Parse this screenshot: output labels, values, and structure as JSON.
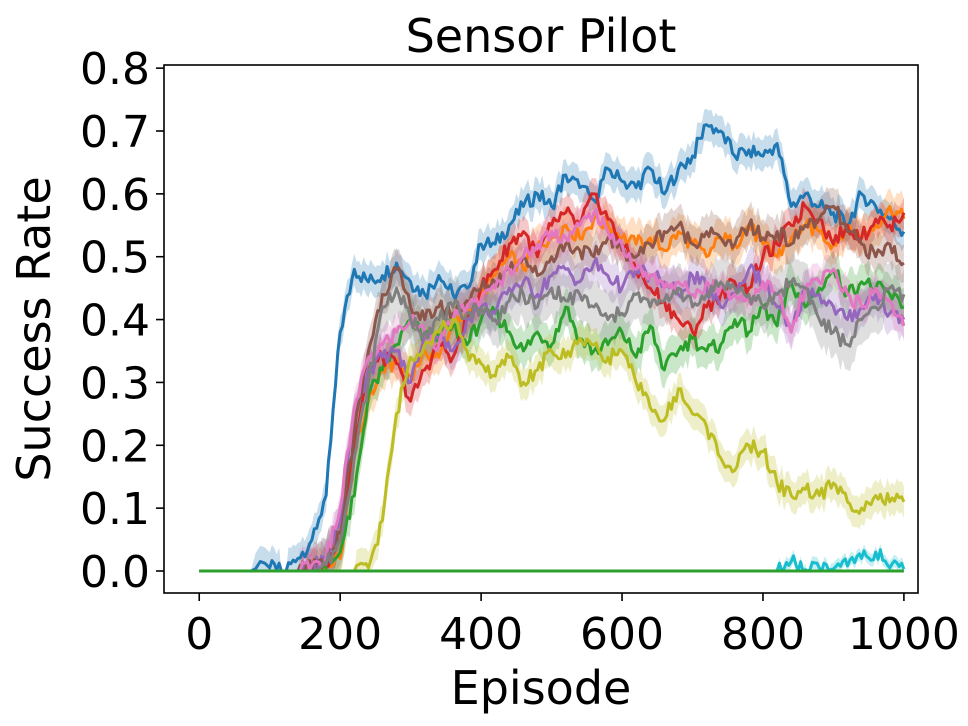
{
  "chart_data": {
    "type": "line",
    "title": "Sensor Pilot",
    "xlabel": "Episode",
    "ylabel": "Success Rate",
    "xlim": [
      -50,
      1020
    ],
    "ylim": [
      -0.035,
      0.805
    ],
    "xticks": [
      "0",
      "200",
      "400",
      "600",
      "800",
      "1000"
    ],
    "xtick_values": [
      0,
      200,
      400,
      600,
      800,
      1000
    ],
    "yticks": [
      "0.0",
      "0.1",
      "0.2",
      "0.3",
      "0.4",
      "0.5",
      "0.6",
      "0.7",
      "0.8"
    ],
    "ytick_values": [
      0.0,
      0.1,
      0.2,
      0.3,
      0.4,
      0.5,
      0.6,
      0.7,
      0.8
    ],
    "grid": false,
    "legend": "none",
    "shaded_band": true,
    "x": [
      0,
      60,
      100,
      120,
      140,
      160,
      180,
      200,
      220,
      240,
      260,
      280,
      300,
      320,
      340,
      360,
      380,
      400,
      420,
      440,
      460,
      480,
      500,
      520,
      540,
      560,
      580,
      600,
      620,
      640,
      660,
      680,
      700,
      720,
      740,
      760,
      780,
      800,
      820,
      840,
      860,
      880,
      900,
      920,
      940,
      960,
      980,
      1000
    ],
    "series": [
      {
        "color": "#1f77b4",
        "values": [
          0,
          0,
          0.005,
          0,
          0.02,
          0.05,
          0.12,
          0.38,
          0.48,
          0.46,
          0.47,
          0.49,
          0.46,
          0.44,
          0.47,
          0.44,
          0.45,
          0.52,
          0.52,
          0.55,
          0.58,
          0.6,
          0.58,
          0.63,
          0.61,
          0.59,
          0.64,
          0.62,
          0.61,
          0.64,
          0.6,
          0.64,
          0.66,
          0.71,
          0.7,
          0.66,
          0.67,
          0.66,
          0.68,
          0.58,
          0.6,
          0.58,
          0.57,
          0.55,
          0.6,
          0.58,
          0.56,
          0.54
        ],
        "band": 0.025
      },
      {
        "color": "#ff7f0e",
        "values": [
          0,
          0,
          0,
          0,
          0,
          0.005,
          0.01,
          0.02,
          0.18,
          0.27,
          0.32,
          0.33,
          0.31,
          0.35,
          0.34,
          0.39,
          0.4,
          0.44,
          0.47,
          0.5,
          0.48,
          0.52,
          0.53,
          0.55,
          0.53,
          0.56,
          0.55,
          0.53,
          0.52,
          0.53,
          0.51,
          0.54,
          0.52,
          0.5,
          0.53,
          0.52,
          0.55,
          0.52,
          0.5,
          0.53,
          0.55,
          0.54,
          0.52,
          0.55,
          0.53,
          0.55,
          0.58,
          0.56
        ],
        "band": 0.03
      },
      {
        "color": "#2ca02c",
        "values": [
          0,
          0,
          0,
          0,
          0,
          0,
          0.005,
          0.03,
          0.12,
          0.28,
          0.32,
          0.36,
          0.4,
          0.37,
          0.38,
          0.39,
          0.36,
          0.4,
          0.41,
          0.38,
          0.35,
          0.38,
          0.36,
          0.42,
          0.37,
          0.35,
          0.36,
          0.38,
          0.34,
          0.39,
          0.32,
          0.35,
          0.37,
          0.35,
          0.36,
          0.4,
          0.38,
          0.42,
          0.39,
          0.46,
          0.42,
          0.45,
          0.48,
          0.44,
          0.46,
          0.45,
          0.44,
          0.42
        ],
        "band": 0.03
      },
      {
        "color": "#d62728",
        "values": [
          0,
          0,
          0,
          0,
          0,
          0.005,
          0.01,
          0.05,
          0.2,
          0.32,
          0.34,
          0.33,
          0.27,
          0.32,
          0.36,
          0.34,
          0.4,
          0.45,
          0.48,
          0.52,
          0.54,
          0.5,
          0.55,
          0.57,
          0.55,
          0.6,
          0.56,
          0.52,
          0.48,
          0.45,
          0.43,
          0.4,
          0.38,
          0.42,
          0.44,
          0.46,
          0.45,
          0.5,
          0.52,
          0.55,
          0.58,
          0.56,
          0.52,
          0.55,
          0.53,
          0.56,
          0.55,
          0.57
        ],
        "band": 0.025
      },
      {
        "color": "#9467bd",
        "values": [
          0,
          0,
          0,
          0,
          0,
          0.005,
          0.02,
          0.08,
          0.25,
          0.32,
          0.34,
          0.35,
          0.3,
          0.38,
          0.37,
          0.35,
          0.4,
          0.42,
          0.41,
          0.45,
          0.46,
          0.44,
          0.47,
          0.48,
          0.46,
          0.49,
          0.47,
          0.45,
          0.48,
          0.47,
          0.46,
          0.44,
          0.47,
          0.45,
          0.42,
          0.44,
          0.48,
          0.46,
          0.42,
          0.38,
          0.45,
          0.44,
          0.42,
          0.4,
          0.42,
          0.44,
          0.41,
          0.4
        ],
        "band": 0.03
      },
      {
        "color": "#8c564b",
        "values": [
          0,
          0,
          0,
          0,
          0,
          0.005,
          0.02,
          0.06,
          0.22,
          0.35,
          0.44,
          0.48,
          0.42,
          0.4,
          0.42,
          0.41,
          0.43,
          0.45,
          0.46,
          0.48,
          0.5,
          0.47,
          0.5,
          0.52,
          0.51,
          0.5,
          0.53,
          0.51,
          0.5,
          0.52,
          0.54,
          0.55,
          0.52,
          0.54,
          0.53,
          0.52,
          0.55,
          0.53,
          0.54,
          0.52,
          0.55,
          0.56,
          0.58,
          0.54,
          0.52,
          0.5,
          0.52,
          0.49
        ],
        "band": 0.03
      },
      {
        "color": "#e377c2",
        "values": [
          0,
          0,
          0,
          0,
          0,
          0.01,
          0.02,
          0.1,
          0.26,
          0.34,
          0.36,
          0.38,
          0.4,
          0.38,
          0.36,
          0.4,
          0.42,
          0.43,
          0.45,
          0.48,
          0.5,
          0.52,
          0.54,
          0.53,
          0.55,
          0.57,
          0.54,
          0.52,
          0.48,
          0.47,
          0.45,
          0.46,
          0.44,
          0.46,
          0.45,
          0.44,
          0.43,
          0.46,
          0.44,
          0.38,
          0.45,
          0.46,
          0.48,
          0.44,
          0.42,
          0.45,
          0.43,
          0.39
        ],
        "band": 0.025
      },
      {
        "color": "#7f7f7f",
        "values": [
          0,
          0,
          0,
          0,
          0,
          0,
          0.01,
          0.05,
          0.18,
          0.3,
          0.42,
          0.45,
          0.4,
          0.38,
          0.4,
          0.42,
          0.41,
          0.42,
          0.4,
          0.43,
          0.44,
          0.42,
          0.45,
          0.43,
          0.44,
          0.42,
          0.4,
          0.41,
          0.44,
          0.42,
          0.43,
          0.45,
          0.42,
          0.44,
          0.46,
          0.45,
          0.44,
          0.42,
          0.44,
          0.46,
          0.45,
          0.4,
          0.38,
          0.36,
          0.4,
          0.42,
          0.45,
          0.44
        ],
        "band": 0.04
      },
      {
        "color": "#bcbd22",
        "values": [
          0,
          0,
          0,
          0,
          0,
          0,
          0,
          0,
          0,
          0.005,
          0.08,
          0.25,
          0.34,
          0.36,
          0.38,
          0.4,
          0.35,
          0.33,
          0.31,
          0.34,
          0.3,
          0.32,
          0.35,
          0.34,
          0.37,
          0.36,
          0.34,
          0.35,
          0.3,
          0.26,
          0.24,
          0.29,
          0.25,
          0.23,
          0.18,
          0.16,
          0.2,
          0.19,
          0.14,
          0.12,
          0.13,
          0.12,
          0.14,
          0.11,
          0.1,
          0.12,
          0.11,
          0.11
        ],
        "band": 0.025
      },
      {
        "color": "#17becf",
        "values": [
          0,
          0,
          0,
          0,
          0,
          0,
          0,
          0,
          0,
          0,
          0,
          0,
          0,
          0,
          0,
          0,
          0,
          0,
          0,
          0,
          0,
          0,
          0,
          0,
          0,
          0,
          0,
          0,
          0,
          0,
          0,
          0,
          0,
          0,
          0,
          0,
          0,
          0,
          0,
          0.015,
          0.002,
          0.005,
          0.003,
          0.008,
          0.02,
          0.03,
          0.005,
          0.003
        ],
        "band": 0.01
      },
      {
        "color": "#2ca02c",
        "values": [
          0,
          0,
          0,
          0,
          0,
          0,
          0,
          0,
          0,
          0,
          0,
          0,
          0,
          0,
          0,
          0,
          0,
          0,
          0,
          0,
          0,
          0,
          0,
          0,
          0,
          0,
          0,
          0,
          0,
          0,
          0,
          0,
          0,
          0,
          0,
          0,
          0,
          0,
          0,
          0,
          0,
          0,
          0,
          0,
          0,
          0,
          0,
          0
        ],
        "band": 0
      }
    ]
  }
}
